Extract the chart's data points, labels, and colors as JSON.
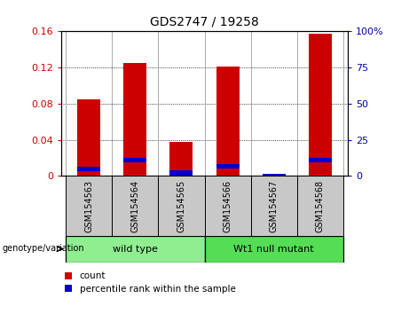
{
  "title": "GDS2747 / 19258",
  "samples": [
    "GSM154563",
    "GSM154564",
    "GSM154565",
    "GSM154566",
    "GSM154567",
    "GSM154568"
  ],
  "red_values": [
    0.085,
    0.125,
    0.038,
    0.121,
    0.0,
    0.157
  ],
  "blue_values_pct": [
    5.0,
    11.0,
    2.0,
    6.5,
    0.0,
    11.0
  ],
  "ylim_left": [
    0,
    0.16
  ],
  "ylim_right": [
    0,
    100
  ],
  "yticks_left": [
    0,
    0.04,
    0.08,
    0.12,
    0.16
  ],
  "yticks_right": [
    0,
    25,
    50,
    75,
    100
  ],
  "ytick_labels_left": [
    "0",
    "0.04",
    "0.08",
    "0.12",
    "0.16"
  ],
  "ytick_labels_right": [
    "0",
    "25",
    "50",
    "75",
    "100%"
  ],
  "bar_width": 0.5,
  "red_color": "#CC0000",
  "blue_color": "#0000CC",
  "background_color": "#ffffff",
  "tick_area_color": "#C8C8C8",
  "group1_color": "#90EE90",
  "group2_color": "#55DD55",
  "left_tick_color": "#CC0000",
  "right_tick_color": "#0000BB",
  "group1_label": "wild type",
  "group2_label": "Wt1 null mutant",
  "genotype_label": "genotype/variation",
  "legend_label_red": "count",
  "legend_label_blue": "percentile rank within the sample"
}
